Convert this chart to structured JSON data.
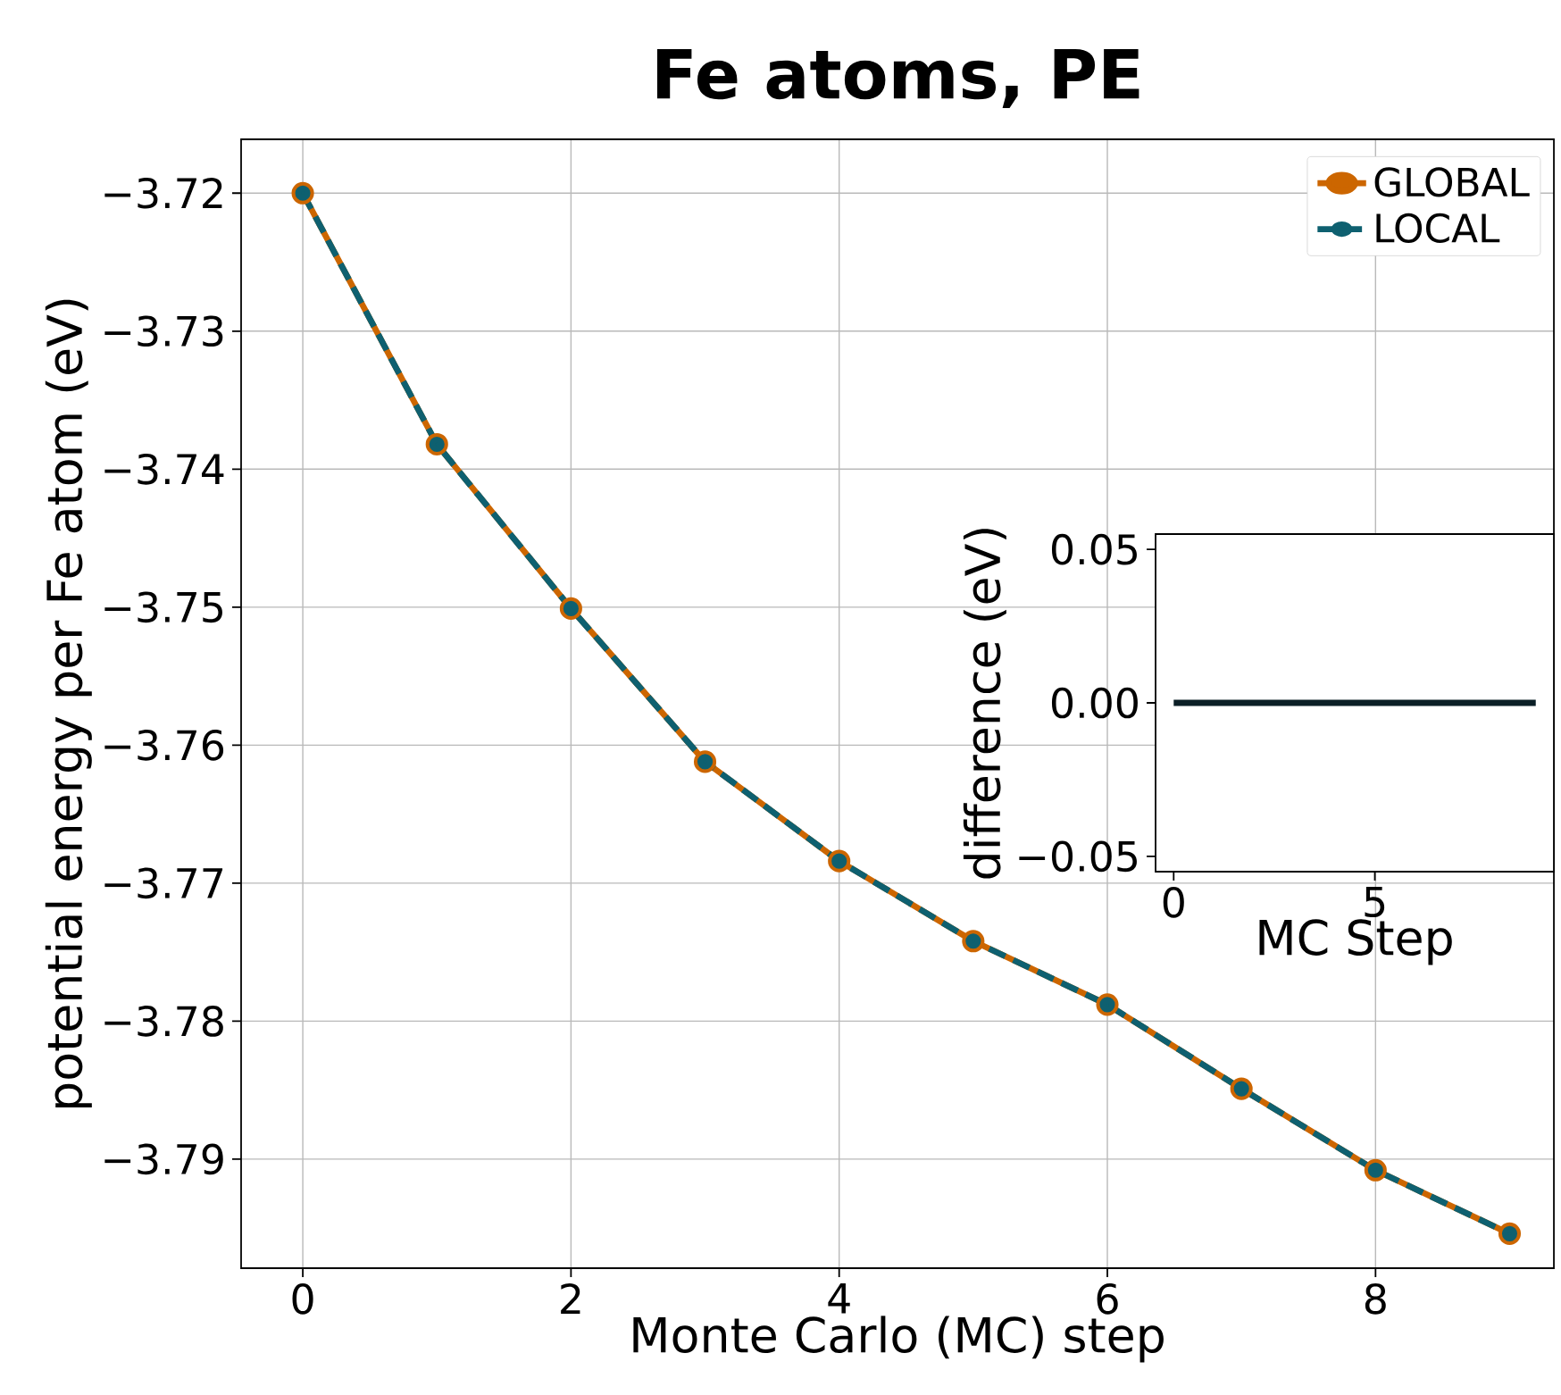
{
  "chart_data": [
    {
      "type": "line",
      "title": "Fe atoms, PE",
      "xlabel": "Monte Carlo (MC) step",
      "ylabel": "potential energy per Fe atom (eV)",
      "x": [
        0,
        1,
        2,
        3,
        4,
        5,
        6,
        7,
        8,
        9
      ],
      "series": [
        {
          "name": "GLOBAL",
          "color": "#cc6600",
          "marker": "circle",
          "line_style": "solid",
          "values": [
            -3.72,
            -3.7382,
            -3.7501,
            -3.7612,
            -3.7684,
            -3.7742,
            -3.7788,
            -3.7849,
            -3.7908,
            -3.7954
          ]
        },
        {
          "name": "LOCAL",
          "color": "#0e6070",
          "marker": "circle",
          "line_style": "dashed",
          "values": [
            -3.72,
            -3.7382,
            -3.7501,
            -3.7612,
            -3.7684,
            -3.7742,
            -3.7788,
            -3.7849,
            -3.7908,
            -3.7954
          ]
        }
      ],
      "xlim": [
        -0.46,
        9.33
      ],
      "ylim": [
        -3.7979,
        -3.7161
      ],
      "xticks": [
        0,
        2,
        4,
        6,
        8
      ],
      "yticks": [
        {
          "value": -3.79,
          "label": "−3.79"
        },
        {
          "value": -3.78,
          "label": "−3.78"
        },
        {
          "value": -3.77,
          "label": "−3.77"
        },
        {
          "value": -3.76,
          "label": "−3.76"
        },
        {
          "value": -3.75,
          "label": "−3.75"
        },
        {
          "value": -3.74,
          "label": "−3.74"
        },
        {
          "value": -3.73,
          "label": "−3.73"
        },
        {
          "value": -3.72,
          "label": "−3.72"
        }
      ],
      "grid": true,
      "legend": "top right"
    },
    {
      "type": "line",
      "xlabel": "MC Step",
      "ylabel": "difference (eV)",
      "x": [
        0,
        1,
        2,
        3,
        4,
        5,
        6,
        7,
        8,
        9
      ],
      "series": [
        {
          "color": "#0b1f26",
          "marker": "none",
          "line_style": "solid",
          "values": [
            0,
            0,
            0,
            0,
            0,
            0,
            0,
            0,
            0,
            0
          ]
        }
      ],
      "xlim": [
        -0.45,
        9.45
      ],
      "ylim": [
        -0.055,
        0.055
      ],
      "xticks": [
        0,
        5
      ],
      "yticks": [
        {
          "value": -0.05,
          "label": "−0.05"
        },
        {
          "value": 0,
          "label": "0.00"
        },
        0.05
      ]
    }
  ]
}
